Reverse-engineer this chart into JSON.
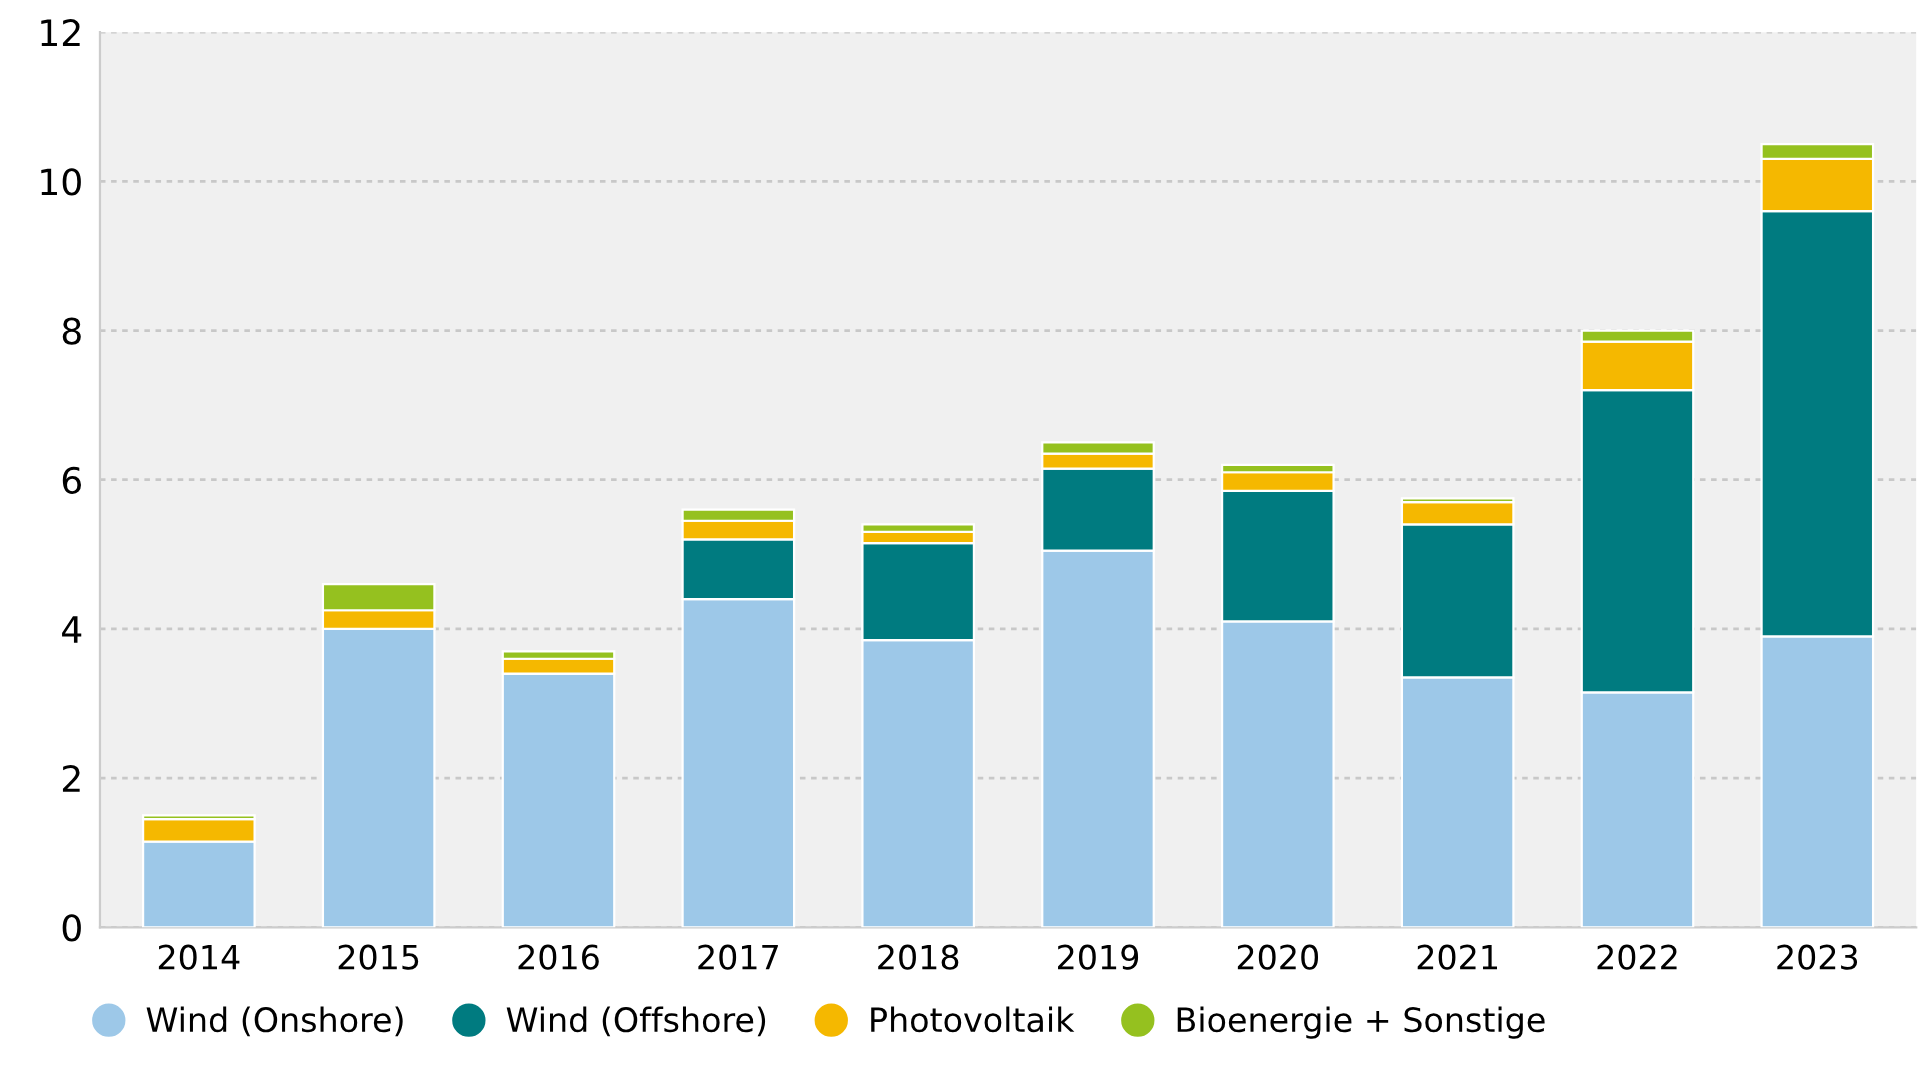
{
  "chart_data": {
    "type": "bar",
    "stacked": true,
    "categories": [
      "2014",
      "2015",
      "2016",
      "2017",
      "2018",
      "2019",
      "2020",
      "2021",
      "2022",
      "2023"
    ],
    "series": [
      {
        "name": "Wind (Onshore)",
        "color": "#9dc8e8",
        "values": [
          1.15,
          4.0,
          3.4,
          4.4,
          3.85,
          5.05,
          4.1,
          3.35,
          3.15,
          3.9
        ]
      },
      {
        "name": "Wind (Offshore)",
        "color": "#007b80",
        "values": [
          0,
          0,
          0,
          0.8,
          1.3,
          1.1,
          1.75,
          2.05,
          4.05,
          5.7
        ]
      },
      {
        "name": "Photovoltaik",
        "color": "#f5b800",
        "values": [
          0.3,
          0.25,
          0.2,
          0.25,
          0.15,
          0.2,
          0.25,
          0.3,
          0.65,
          0.7
        ]
      },
      {
        "name": "Bioenergie + Sonstige",
        "color": "#95c11f",
        "values": [
          0.05,
          0.35,
          0.1,
          0.15,
          0.1,
          0.15,
          0.1,
          0.05,
          0.15,
          0.2
        ]
      }
    ],
    "ylim": [
      0,
      12
    ],
    "yticks": [
      0,
      2,
      4,
      6,
      8,
      10,
      12
    ],
    "grid": "y",
    "legend": "bottom",
    "marker": "circle"
  }
}
